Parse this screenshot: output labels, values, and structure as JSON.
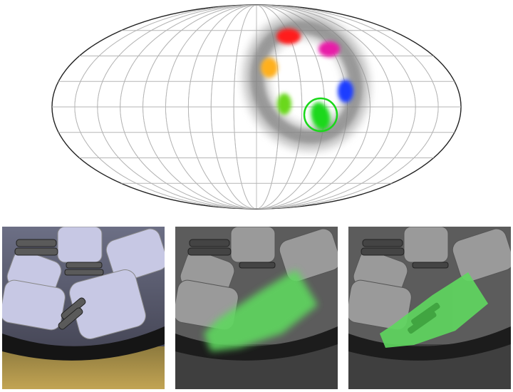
{
  "projection": {
    "type": "mollweide",
    "meridian_count": 17,
    "parallel_count": 7,
    "cluster_colors": [
      "#ff1a1a",
      "#e81aa8",
      "#ffb01a",
      "#1a3cff",
      "#6ad81a",
      "#1ad81a"
    ],
    "ring_color": "#1ad81a"
  },
  "panels": [
    {
      "icon": "robot-wheel-color-photo"
    },
    {
      "icon": "robot-wheel-green-highlight-soft"
    },
    {
      "icon": "robot-wheel-green-highlight-sharp"
    }
  ],
  "colors": {
    "highlight": "#5fd85f",
    "background": "#ffffff"
  }
}
